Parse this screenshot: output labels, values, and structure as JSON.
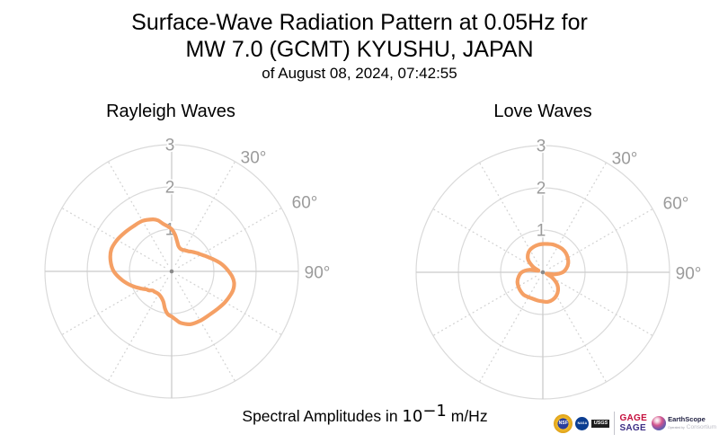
{
  "header": {
    "title_line1": "Surface-Wave Radiation Pattern at 0.05Hz for",
    "title_line2": "MW 7.0 (GCMT) KYUSHU, JAPAN",
    "subtitle": "of August 08, 2024, 07:42:55"
  },
  "footer": {
    "caption": {
      "prefix": "Spectral Amplitudes in ",
      "base": "10",
      "exponent": "−1",
      "suffix": " m/Hz"
    }
  },
  "logos": {
    "nsf": "NSF",
    "nasa": "NASA",
    "usgs": "USGS",
    "gage": "GAGE",
    "sage": "SAGE",
    "earthscope": "EarthScope",
    "operated_by": "Operated by",
    "consortium": "Consortium"
  },
  "colors": {
    "curve": "#F5A065",
    "grid_circle": "#DADADA",
    "axis_line": "#CBCBCB",
    "spoke_dotted": "#D3D3D3",
    "tick_label": "#9B9B9B",
    "center_dot": "#8A8A8A"
  },
  "chart_data": [
    {
      "type": "line",
      "subtype": "polar-radiation-pattern",
      "title": "Rayleigh Waves",
      "radial_tick_labels": [
        "1",
        "2",
        "3"
      ],
      "radial_ticks": [
        1,
        2,
        3
      ],
      "rlim": [
        0,
        3
      ],
      "angle_tick_labels": [
        "30°",
        "60°",
        "90°"
      ],
      "angle_tick_deg": [
        30,
        60,
        90
      ],
      "angle_grid_deg": [
        0,
        30,
        60,
        90,
        120,
        150,
        180,
        210,
        240,
        270,
        300,
        330
      ],
      "grid": "on",
      "series": [
        {
          "name": "rayleigh-radiation-amplitude",
          "azimuth_deg": [
            0,
            5,
            10,
            15,
            20,
            25,
            30,
            35,
            40,
            45,
            50,
            55,
            60,
            65,
            70,
            75,
            80,
            85,
            90,
            95,
            100,
            105,
            110,
            120,
            130,
            140,
            150,
            160,
            170,
            175,
            180,
            185,
            190,
            195,
            200,
            205,
            210,
            215,
            220,
            225,
            230,
            235,
            240,
            250,
            260,
            270,
            280,
            290,
            300,
            310,
            320,
            330,
            340,
            345,
            350,
            355
          ],
          "r": [
            1.0,
            0.88,
            0.73,
            0.62,
            0.58,
            0.57,
            0.58,
            0.6,
            0.62,
            0.66,
            0.7,
            0.75,
            0.8,
            0.87,
            0.95,
            1.05,
            1.16,
            1.26,
            1.35,
            1.44,
            1.5,
            1.52,
            1.51,
            1.46,
            1.4,
            1.36,
            1.35,
            1.33,
            1.24,
            1.15,
            1.07,
            1.02,
            0.9,
            0.75,
            0.68,
            0.64,
            0.62,
            0.62,
            0.63,
            0.64,
            0.7,
            0.74,
            0.82,
            1.0,
            1.19,
            1.37,
            1.47,
            1.52,
            1.49,
            1.44,
            1.4,
            1.38,
            1.31,
            1.25,
            1.14,
            1.07
          ]
        }
      ]
    },
    {
      "type": "line",
      "subtype": "polar-radiation-pattern",
      "title": "Love Waves",
      "radial_tick_labels": [
        "1",
        "2",
        "3"
      ],
      "radial_ticks": [
        1,
        2,
        3
      ],
      "rlim": [
        0,
        3
      ],
      "angle_tick_labels": [
        "30°",
        "60°",
        "90°"
      ],
      "angle_tick_deg": [
        30,
        60,
        90
      ],
      "angle_grid_deg": [
        0,
        30,
        60,
        90,
        120,
        150,
        180,
        210,
        240,
        270,
        300,
        330
      ],
      "grid": "on",
      "series": [
        {
          "name": "love-radiation-amplitude",
          "azimuth_deg": [
            0,
            10,
            20,
            30,
            40,
            50,
            60,
            70,
            80,
            90,
            100,
            108,
            115,
            120,
            130,
            140,
            150,
            160,
            170,
            180,
            190,
            200,
            210,
            220,
            230,
            240,
            250,
            260,
            270,
            280,
            288,
            295,
            300,
            310,
            320,
            330,
            340,
            350
          ],
          "r": [
            0.67,
            0.68,
            0.7,
            0.71,
            0.72,
            0.71,
            0.68,
            0.64,
            0.57,
            0.47,
            0.28,
            0.1,
            0.14,
            0.26,
            0.44,
            0.56,
            0.64,
            0.69,
            0.71,
            0.69,
            0.68,
            0.67,
            0.68,
            0.7,
            0.69,
            0.67,
            0.64,
            0.58,
            0.5,
            0.33,
            0.12,
            0.16,
            0.28,
            0.45,
            0.55,
            0.61,
            0.64,
            0.66
          ]
        }
      ]
    }
  ]
}
